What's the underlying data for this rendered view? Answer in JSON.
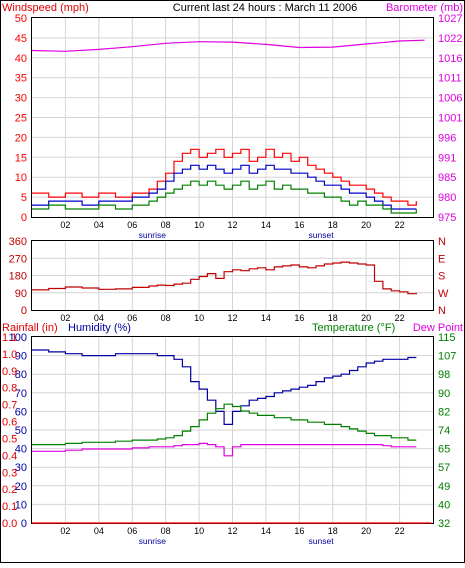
{
  "header": {
    "title": "Current last 24 hours : March 11 2006",
    "left_label": "Windspeed (mph)",
    "right_label": "Barometer (mb)"
  },
  "colors": {
    "frame": "#000000",
    "grid": "#d4d4d4",
    "wind_gust": "#ff0000",
    "wind_avg": "#0000c8",
    "wind_low": "#008000",
    "barometer": "#e000e0",
    "direction": "#c00000",
    "rain_axis": "#e00000",
    "humidity": "#0000a0",
    "temperature": "#008000",
    "dew_point": "#e000e0",
    "rain": "#ff0000"
  },
  "chart_data": [
    {
      "type": "line",
      "title": "Current last 24 hours : March 11 2006",
      "ylabel": "Windspeed (mph)",
      "y2label": "Barometer (mb)",
      "x_tick_labels": [
        "02",
        "04",
        "06",
        "08",
        "10",
        "12",
        "14",
        "16",
        "18",
        "20",
        "22"
      ],
      "x_annotations": [
        "sunrise",
        "sunset"
      ],
      "ylim": [
        0,
        50
      ],
      "y_ticks": [
        "0",
        "5",
        "10",
        "15",
        "20",
        "25",
        "30",
        "35",
        "40",
        "45",
        "50"
      ],
      "y2_ticks": [
        "975",
        "980",
        "985",
        "991",
        "996",
        "1001",
        "1006",
        "1011",
        "1016",
        "1022",
        "1027"
      ],
      "y2lim": [
        975,
        1027
      ],
      "grid": true,
      "series": [
        {
          "x": [
            0,
            1,
            2,
            3,
            4,
            5,
            6,
            7,
            7.5,
            8,
            8.5,
            9,
            9.5,
            10,
            10.5,
            11,
            11.5,
            12,
            12.5,
            13,
            13.5,
            14,
            14.5,
            15,
            15.5,
            16,
            16.5,
            17,
            17.5,
            18,
            18.5,
            19,
            19.5,
            20,
            20.5,
            21,
            21.5,
            22,
            22.5,
            23
          ],
          "values": [
            6,
            5,
            6,
            5,
            6,
            5,
            6,
            7,
            9,
            11,
            14,
            16,
            17,
            15,
            16,
            17,
            15,
            16,
            17,
            14,
            15,
            17,
            15,
            16,
            14,
            15,
            13,
            12,
            11,
            10,
            9,
            8,
            8,
            7,
            6,
            5,
            4,
            4,
            3,
            4
          ]
        },
        {
          "x": [
            0,
            1,
            2,
            3,
            4,
            5,
            6,
            7,
            7.5,
            8,
            8.5,
            9,
            9.5,
            10,
            10.5,
            11,
            11.5,
            12,
            12.5,
            13,
            13.5,
            14,
            14.5,
            15,
            15.5,
            16,
            16.5,
            17,
            17.5,
            18,
            18.5,
            19,
            19.5,
            20,
            20.5,
            21,
            21.5,
            22,
            22.5,
            23
          ],
          "values": [
            3,
            4,
            4,
            3,
            4,
            4,
            5,
            6,
            7,
            9,
            11,
            12,
            13,
            12,
            13,
            12,
            11,
            12,
            13,
            11,
            12,
            13,
            12,
            12,
            11,
            11,
            10,
            9,
            8,
            8,
            7,
            6,
            6,
            5,
            4,
            3,
            2,
            2,
            2,
            2
          ]
        },
        {
          "x": [
            0,
            1,
            2,
            3,
            4,
            5,
            6,
            7,
            7.5,
            8,
            8.5,
            9,
            9.5,
            10,
            10.5,
            11,
            11.5,
            12,
            12.5,
            13,
            13.5,
            14,
            14.5,
            15,
            15.5,
            16,
            16.5,
            17,
            17.5,
            18,
            18.5,
            19,
            19.5,
            20,
            20.5,
            21,
            21.5,
            22,
            22.5,
            23
          ],
          "values": [
            2,
            3,
            2,
            2,
            3,
            2,
            3,
            4,
            5,
            6,
            7,
            8,
            9,
            8,
            9,
            8,
            7,
            8,
            9,
            7,
            8,
            9,
            7,
            8,
            7,
            7,
            6,
            6,
            5,
            5,
            4,
            3,
            4,
            3,
            3,
            2,
            1,
            1,
            1,
            2
          ]
        },
        {
          "x": [
            0,
            2,
            4,
            6,
            8,
            10,
            12,
            14,
            16,
            18,
            20,
            22,
            23.5
          ],
          "values": [
            1018.5,
            1018.3,
            1018.8,
            1019.5,
            1020.4,
            1020.8,
            1020.7,
            1020.1,
            1019.3,
            1019.4,
            1020.2,
            1021.0,
            1021.2
          ]
        }
      ]
    },
    {
      "type": "scatter",
      "ylim": [
        0,
        360
      ],
      "y_ticks": [
        "0",
        "90",
        "180",
        "270",
        "360"
      ],
      "y2_ticks": [
        "N",
        "W",
        "S",
        "E",
        "N"
      ],
      "x_tick_labels": [
        "02",
        "04",
        "06",
        "08",
        "10",
        "12",
        "14",
        "16",
        "18",
        "20",
        "22"
      ],
      "grid": true,
      "series": [
        {
          "x": [
            0,
            1,
            2,
            3,
            4,
            5,
            6,
            7,
            7.5,
            8,
            8.5,
            9,
            9.5,
            10,
            10.5,
            11,
            11.5,
            12,
            12.5,
            13,
            13.5,
            14,
            14.5,
            15,
            15.5,
            16,
            16.5,
            17,
            17.5,
            18,
            18.5,
            19,
            19.5,
            20,
            20.5,
            21,
            21.5,
            22,
            22.5,
            23
          ],
          "values": [
            105,
            112,
            120,
            115,
            108,
            110,
            118,
            125,
            130,
            128,
            135,
            140,
            160,
            175,
            190,
            165,
            200,
            210,
            205,
            215,
            220,
            210,
            225,
            230,
            235,
            225,
            220,
            230,
            240,
            245,
            250,
            245,
            240,
            235,
            150,
            110,
            100,
            95,
            85,
            90
          ]
        }
      ]
    },
    {
      "type": "line",
      "ylabel": "Rainfall (in)",
      "ylabel2": "Humidity (%)",
      "y2label": "Temperature (°F)",
      "y2label2": "Dew Point",
      "rain_ticks": [
        "0.0",
        "0.1",
        "0.2",
        "0.3",
        "0.4",
        "0.5",
        "0.6",
        "0.7",
        "0.8",
        "0.9",
        "1.0",
        "1.1"
      ],
      "humidity_ticks": [
        "0",
        "10",
        "20",
        "30",
        "40",
        "50",
        "60",
        "70",
        "80",
        "90",
        "100"
      ],
      "ylim": [
        0,
        100
      ],
      "temp_ticks": [
        "32",
        "40",
        "49",
        "57",
        "65",
        "74",
        "82",
        "90",
        "98",
        "107",
        "115"
      ],
      "y2lim": [
        32,
        115
      ],
      "x_tick_labels": [
        "02",
        "04",
        "06",
        "08",
        "10",
        "12",
        "14",
        "16",
        "18",
        "20",
        "22"
      ],
      "x_annotations": [
        "sunrise",
        "sunset"
      ],
      "grid": true,
      "series": [
        {
          "x": [
            0,
            1,
            2,
            3,
            4,
            5,
            6,
            7,
            7.5,
            8,
            8.5,
            9,
            9.5,
            10,
            10.5,
            11,
            11.5,
            12,
            12.5,
            13,
            13.5,
            14,
            14.5,
            15,
            15.5,
            16,
            16.5,
            17,
            17.5,
            18,
            18.5,
            19,
            19.5,
            20,
            20.5,
            21,
            21.5,
            22,
            22.5,
            23
          ],
          "values": [
            93,
            92,
            91,
            90,
            90,
            91,
            91,
            91,
            90,
            90,
            88,
            84,
            76,
            72,
            66,
            60,
            53,
            60,
            63,
            66,
            67,
            68,
            70,
            71,
            72,
            73,
            74,
            76,
            78,
            79,
            80,
            82,
            84,
            86,
            87,
            88,
            88,
            88,
            89,
            89
          ]
        },
        {
          "x": [
            0,
            1,
            2,
            3,
            4,
            5,
            6,
            7,
            7.5,
            8,
            8.5,
            9,
            9.5,
            10,
            10.5,
            11,
            11.5,
            12,
            12.5,
            13,
            13.5,
            14,
            14.5,
            15,
            15.5,
            16,
            16.5,
            17,
            17.5,
            18,
            18.5,
            19,
            19.5,
            20,
            20.5,
            21,
            21.5,
            22,
            22.5,
            23
          ],
          "values": [
            67,
            67,
            67.5,
            68,
            68,
            68.5,
            69,
            69,
            69.5,
            70,
            71,
            73,
            75,
            78,
            81,
            83,
            85,
            84,
            82,
            81,
            80,
            80,
            79,
            79,
            78,
            78,
            77,
            77,
            76,
            76,
            75,
            74,
            73,
            72,
            71,
            71,
            70,
            70,
            69,
            69
          ]
        },
        {
          "x": [
            0,
            1,
            2,
            3,
            4,
            5,
            6,
            7,
            7.5,
            8,
            8.5,
            9,
            9.5,
            10,
            10.5,
            11,
            11.5,
            12,
            12.5,
            13,
            13.5,
            14,
            14.5,
            15,
            15.5,
            16,
            16.5,
            17,
            17.5,
            18,
            18.5,
            19,
            19.5,
            20,
            20.5,
            21,
            21.5,
            22,
            22.5,
            23
          ],
          "values": [
            64,
            64,
            64.5,
            65,
            65,
            65,
            65.5,
            66,
            66,
            66,
            66.5,
            67,
            67,
            67.5,
            67,
            66,
            62,
            66,
            67,
            67,
            67,
            67,
            67,
            67,
            67,
            67,
            67,
            67,
            67,
            67,
            67,
            67,
            67,
            67,
            67,
            66.5,
            66,
            66,
            66,
            66
          ]
        },
        {
          "x": [
            0,
            23.9
          ],
          "values": [
            0,
            0
          ]
        }
      ]
    }
  ]
}
